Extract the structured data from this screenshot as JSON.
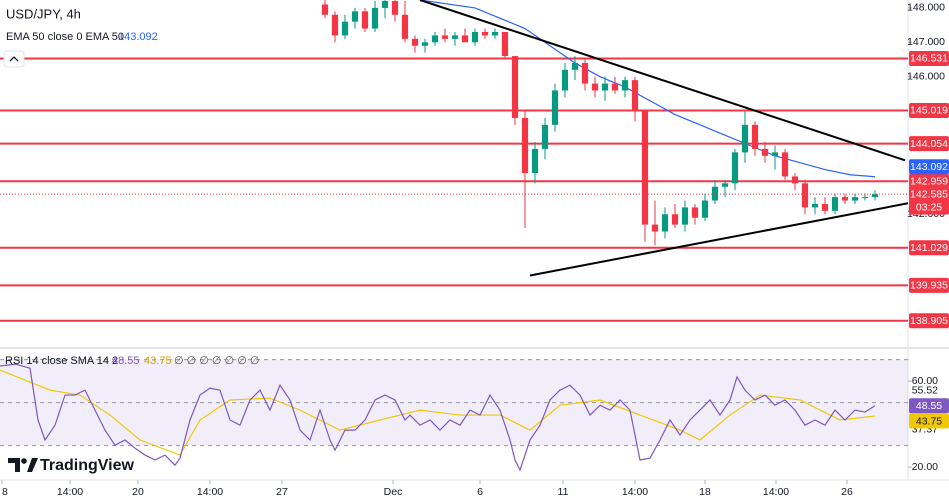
{
  "chart_data": {
    "type": "candlestick",
    "title": "USD/JPY, 4h",
    "x": [
      65,
      67,
      69,
      71,
      73,
      75,
      77,
      79,
      81,
      83,
      85,
      87,
      89,
      91,
      93,
      95,
      97,
      99,
      101,
      103,
      105,
      107,
      109,
      111,
      113,
      115,
      117,
      119,
      121,
      123,
      125,
      127,
      129,
      131,
      133,
      135,
      137,
      139,
      141,
      143,
      145,
      147,
      149,
      151,
      153,
      155,
      157,
      159,
      161,
      163,
      165,
      167,
      169,
      171,
      173,
      175
    ],
    "open": [
      148.1,
      147.8,
      147.2,
      147.6,
      147.9,
      147.4,
      148.0,
      148.2,
      147.8,
      147.1,
      146.9,
      147.0,
      147.2,
      147.1,
      147.2,
      147.0,
      147.3,
      147.2,
      147.3,
      146.6,
      144.8,
      143.2,
      143.9,
      144.6,
      145.6,
      146.2,
      146.4,
      145.8,
      145.6,
      145.8,
      145.6,
      145.9,
      145.0,
      141.7,
      141.5,
      142.0,
      141.7,
      142.2,
      141.9,
      142.4,
      142.8,
      142.9,
      143.8,
      144.6,
      143.9,
      143.7,
      143.8,
      143.1,
      142.9,
      142.2,
      142.3,
      142.1,
      142.5,
      142.4,
      142.5,
      142.5
    ],
    "high": [
      148.3,
      147.9,
      147.8,
      148.0,
      148.0,
      148.2,
      148.3,
      148.3,
      148.2,
      147.2,
      147.1,
      147.3,
      147.4,
      147.3,
      147.4,
      147.4,
      147.4,
      147.4,
      147.3,
      146.6,
      145.0,
      144.1,
      144.8,
      145.8,
      146.4,
      146.6,
      146.5,
      146.0,
      146.0,
      146.0,
      146.0,
      146.0,
      145.0,
      142.4,
      142.2,
      142.3,
      142.4,
      142.3,
      142.6,
      143.0,
      143.0,
      143.9,
      145.0,
      144.7,
      144.1,
      144.0,
      143.9,
      143.2,
      143.0,
      142.5,
      142.5,
      142.6,
      142.6,
      142.6,
      142.6,
      142.7
    ],
    "low": [
      147.7,
      147.0,
      147.1,
      147.4,
      147.3,
      147.3,
      147.7,
      147.6,
      147.0,
      146.7,
      146.7,
      146.9,
      147.0,
      146.9,
      147.0,
      146.9,
      147.1,
      147.1,
      146.5,
      144.6,
      141.6,
      142.9,
      143.6,
      144.4,
      145.4,
      145.9,
      145.6,
      145.4,
      145.3,
      145.5,
      145.4,
      144.7,
      141.2,
      141.1,
      141.3,
      141.6,
      141.5,
      141.7,
      141.8,
      142.3,
      142.5,
      142.7,
      143.5,
      143.7,
      143.5,
      143.3,
      143.0,
      142.7,
      142.0,
      142.0,
      142.0,
      142.0,
      142.3,
      142.3,
      142.4,
      142.4
    ],
    "close": [
      147.8,
      147.2,
      147.6,
      147.9,
      147.4,
      148.0,
      148.2,
      147.8,
      147.1,
      146.9,
      147.0,
      147.2,
      147.1,
      147.2,
      147.0,
      147.3,
      147.2,
      147.3,
      146.6,
      144.8,
      143.2,
      143.9,
      144.6,
      145.6,
      146.2,
      146.4,
      145.8,
      145.6,
      145.8,
      145.6,
      145.9,
      145.0,
      141.7,
      141.5,
      142.0,
      141.7,
      142.2,
      141.9,
      142.4,
      142.8,
      142.9,
      143.8,
      144.6,
      143.9,
      143.7,
      143.8,
      143.1,
      142.9,
      142.2,
      142.3,
      142.1,
      142.5,
      142.4,
      142.5,
      142.5,
      142.585
    ],
    "up_color": "#089981",
    "down_color": "#f23645",
    "xlim": [
      0,
      181.6
    ],
    "ylim": [
      138.2,
      148.23
    ],
    "yticks": [
      {
        "value": 148,
        "label": "148.000"
      },
      {
        "value": 147,
        "label": "147.000"
      },
      {
        "value": 146,
        "label": "146.000"
      },
      {
        "value": 142,
        "label": "142.000"
      }
    ],
    "xticks": [
      {
        "value": 0.4,
        "label": "8"
      },
      {
        "value": 14,
        "label": "14:00"
      },
      {
        "value": 27.6,
        "label": "20"
      },
      {
        "value": 42,
        "label": "14:00"
      },
      {
        "value": 56.4,
        "label": "27"
      },
      {
        "value": 78.6,
        "label": "Dec"
      },
      {
        "value": 96,
        "label": "6"
      },
      {
        "value": 112.6,
        "label": "11"
      },
      {
        "value": 127,
        "label": "14:00"
      },
      {
        "value": 141,
        "label": "18"
      },
      {
        "value": 155.2,
        "label": "14:00"
      },
      {
        "value": 169.4,
        "label": "26"
      }
    ],
    "levels": {
      "color": "#f23645",
      "values": [
        146.531,
        145.019,
        144.054,
        142.959,
        141.029,
        139.935,
        138.905
      ]
    },
    "countdown": "03:25",
    "ema": {
      "name": "EMA 50 close 0 EMA 50",
      "color": "#2962ff",
      "x": [
        84,
        95,
        105,
        110,
        115,
        120,
        125,
        130,
        135,
        140,
        145,
        150,
        155,
        160,
        165,
        170,
        175
      ],
      "values": [
        148.23,
        148.0,
        147.4,
        146.9,
        146.4,
        146.0,
        145.7,
        145.3,
        144.9,
        144.6,
        144.3,
        144.0,
        143.7,
        143.5,
        143.3,
        143.15,
        143.092
      ]
    },
    "trendlines": [
      {
        "color": "#000000",
        "x": [
          84,
          181
        ],
        "y": [
          148.23,
          143.57
        ]
      },
      {
        "color": "#000000",
        "x": [
          106,
          181.6
        ],
        "y": [
          140.22,
          142.32
        ]
      }
    ],
    "rsi": {
      "name": "RSI 14 close SMA 14 2",
      "color": "#7e57c2",
      "extra": "∅ ∅ ∅ ∅ ∅ ∅ ∅",
      "ylim": [
        14,
        71.2
      ],
      "yticks": [
        {
          "value": 60,
          "label": "60.00"
        },
        {
          "value": 20,
          "label": "20.00"
        }
      ],
      "bands": [
        70,
        50,
        30
      ],
      "axis_labels": [
        55.52,
        37.37
      ],
      "x": [
        0,
        3,
        6,
        7.6,
        9,
        11,
        13,
        15,
        17,
        19,
        21,
        23,
        25,
        27,
        29,
        31,
        33,
        35,
        36,
        38,
        40,
        42,
        44,
        46,
        48,
        50,
        52,
        54,
        56,
        58,
        60,
        62,
        64,
        66,
        67,
        69,
        71,
        73,
        75,
        77,
        79,
        81,
        82,
        84,
        86,
        88,
        90,
        92,
        94,
        96,
        98,
        100,
        102,
        103,
        104,
        106,
        108,
        110,
        112,
        114,
        116,
        118,
        120,
        122,
        124,
        126,
        128,
        130,
        132,
        134,
        136,
        138,
        140,
        142,
        144,
        146,
        147.4,
        149,
        151,
        153,
        155,
        157,
        159,
        161,
        163,
        165,
        167,
        169,
        171,
        173,
        175
      ],
      "values": [
        67,
        67.9,
        66,
        41.9,
        32.6,
        39.5,
        53.5,
        53.5,
        55.8,
        46.5,
        37.2,
        30.2,
        32.6,
        28.8,
        25.6,
        23.3,
        25.6,
        20.9,
        24.2,
        41.9,
        53.5,
        56.7,
        55.8,
        41.9,
        39.5,
        51.2,
        55.8,
        46.5,
        58.1,
        51.2,
        37.2,
        32.6,
        46.5,
        32.6,
        27.9,
        37.2,
        37.2,
        41.9,
        51.2,
        53.5,
        51.2,
        41.9,
        44.2,
        39.5,
        41.9,
        37.2,
        41.9,
        39.5,
        46.5,
        44.2,
        53.5,
        46.5,
        32.6,
        23.3,
        18.6,
        32.6,
        39.5,
        51.2,
        55.8,
        58.1,
        53.5,
        44.2,
        48.8,
        46.5,
        51.2,
        46.5,
        23.3,
        24.2,
        32.6,
        41.9,
        34.9,
        41.9,
        46.5,
        51.2,
        44.2,
        51.2,
        61.9,
        55.8,
        51.2,
        53.5,
        48.8,
        51.2,
        46.5,
        39.5,
        41.9,
        39.5,
        46.5,
        41.9,
        46.5,
        45.6,
        48.55
      ],
      "sma": {
        "color": "#f0c808",
        "x": [
          0,
          10,
          16,
          22,
          28,
          36,
          40,
          46,
          54,
          60,
          68,
          76,
          84,
          92,
          100,
          106,
          112,
          120,
          128,
          136,
          140,
          146,
          152,
          160,
          168,
          175
        ],
        "values": [
          65.1,
          55.8,
          53.5,
          44.2,
          32.6,
          25.6,
          41.9,
          51.2,
          52.1,
          46.5,
          37.2,
          41.9,
          46.5,
          44.2,
          44.2,
          37.2,
          48.8,
          51.2,
          44.2,
          37.2,
          32.6,
          44.2,
          53.5,
          51.2,
          41.9,
          43.75
        ]
      }
    },
    "brand": "TradingView"
  }
}
